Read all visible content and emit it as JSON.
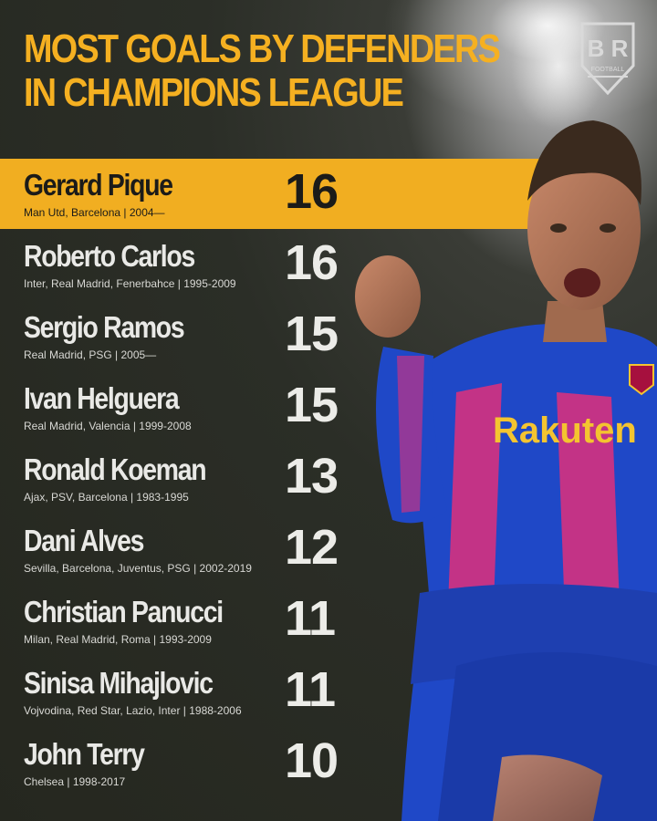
{
  "header": {
    "title_line1": "MOST GOALS BY DEFENDERS",
    "title_line2": "IN CHAMPIONS LEAGUE"
  },
  "brand": {
    "logo_letters": "B R",
    "logo_sub": "FOOTBALL"
  },
  "sponsor_text": "Rakuten",
  "colors": {
    "accent": "#f1ae21",
    "background": "#2b2e27",
    "text_light": "#e9e9e6",
    "kit_blue": "#1f48c7",
    "kit_pink": "#e0307a"
  },
  "rankings": [
    {
      "name": "Gerard Pique",
      "clubs": "Man Utd, Barcelona | 2004—",
      "goals": "16"
    },
    {
      "name": "Roberto Carlos",
      "clubs": "Inter, Real Madrid, Fenerbahce | 1995-2009",
      "goals": "16"
    },
    {
      "name": "Sergio Ramos",
      "clubs": "Real Madrid, PSG | 2005—",
      "goals": "15"
    },
    {
      "name": "Ivan Helguera",
      "clubs": "Real Madrid, Valencia | 1999-2008",
      "goals": "15"
    },
    {
      "name": "Ronald Koeman",
      "clubs": "Ajax, PSV, Barcelona | 1983-1995",
      "goals": "13"
    },
    {
      "name": "Dani Alves",
      "clubs": "Sevilla, Barcelona, Juventus, PSG | 2002-2019",
      "goals": "12"
    },
    {
      "name": "Christian Panucci",
      "clubs": "Milan, Real Madrid, Roma | 1993-2009",
      "goals": "11"
    },
    {
      "name": "Sinisa Mihajlovic",
      "clubs": "Vojvodina, Red Star, Lazio, Inter | 1988-2006",
      "goals": "11"
    },
    {
      "name": "John Terry",
      "clubs": "Chelsea | 1998-2017",
      "goals": "10"
    }
  ]
}
